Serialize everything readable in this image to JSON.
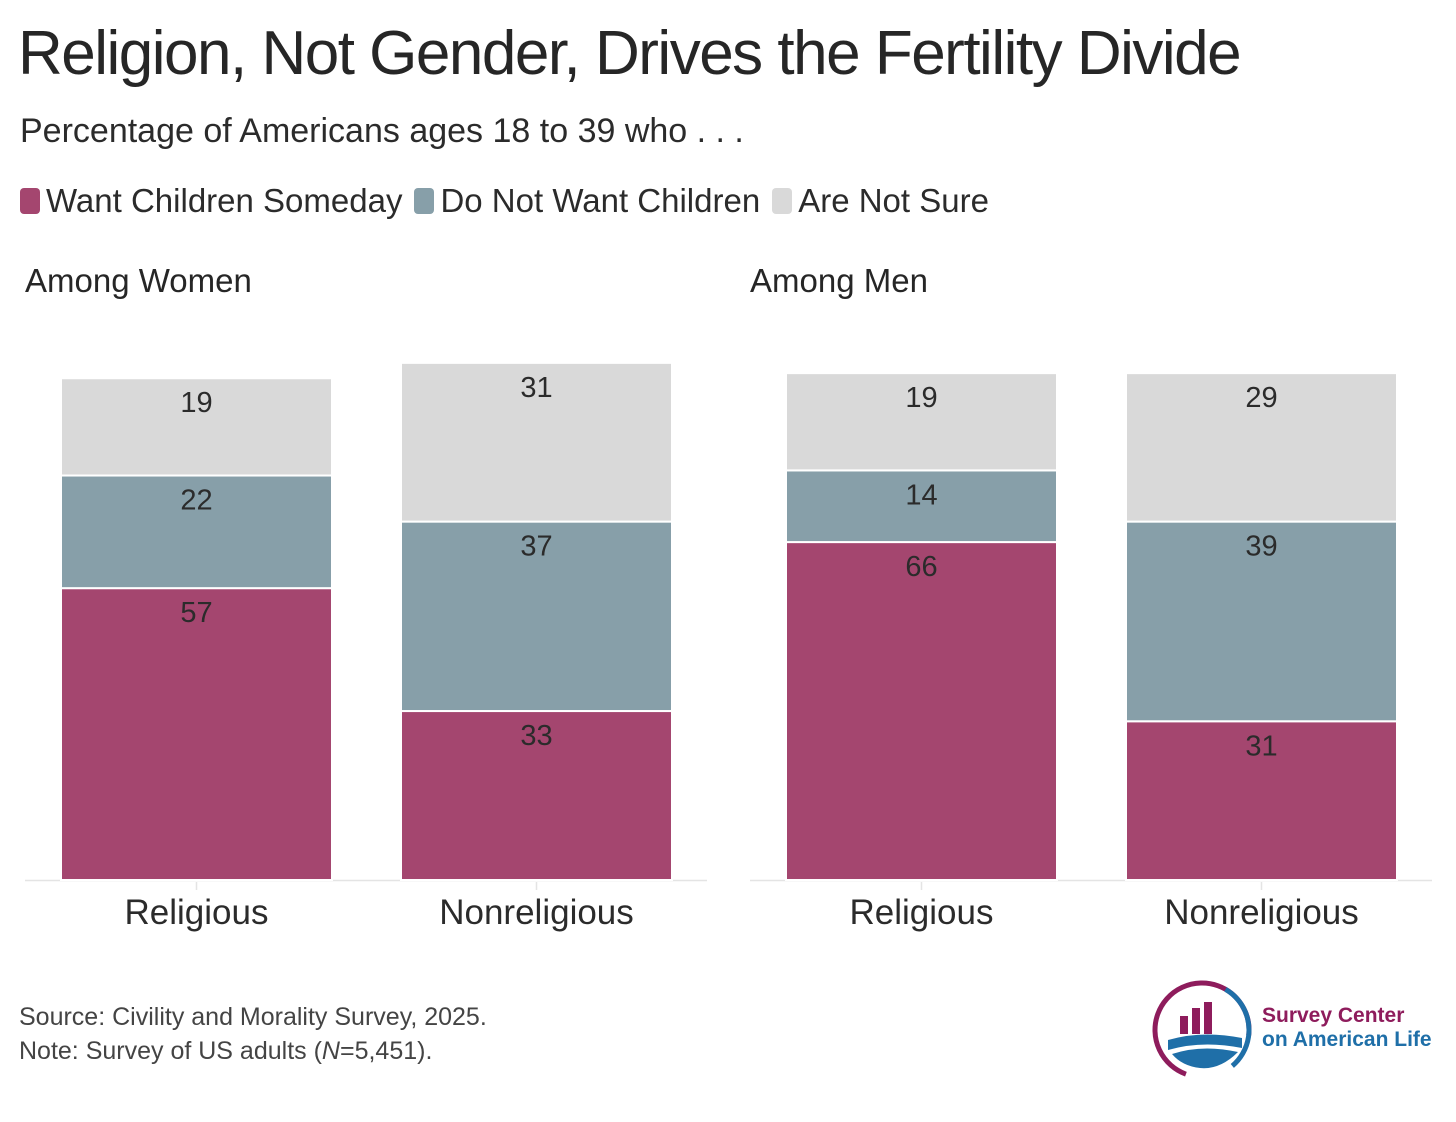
{
  "title": "Religion, Not Gender, Drives the Fertility Divide",
  "subtitle": "Percentage of Americans ages 18 to 39 who . . .",
  "legend": [
    {
      "label": "Want Children Someday",
      "color": "#a4466f"
    },
    {
      "label": "Do Not Want Children",
      "color": "#879fa9"
    },
    {
      "label": "Are Not Sure",
      "color": "#d9d9d9"
    }
  ],
  "chart_data": [
    {
      "type": "bar",
      "stacked": true,
      "title": "Among Women",
      "categories": [
        "Religious",
        "Nonreligious"
      ],
      "series": [
        {
          "name": "Want Children Someday",
          "values": [
            57,
            33
          ],
          "color": "#a4466f"
        },
        {
          "name": "Do Not Want Children",
          "values": [
            22,
            37
          ],
          "color": "#879fa9"
        },
        {
          "name": "Are Not Sure",
          "values": [
            19,
            31
          ],
          "color": "#d9d9d9"
        }
      ],
      "ylim": [
        0,
        100
      ]
    },
    {
      "type": "bar",
      "stacked": true,
      "title": "Among Men",
      "categories": [
        "Religious",
        "Nonreligious"
      ],
      "series": [
        {
          "name": "Want Children Someday",
          "values": [
            66,
            31
          ],
          "color": "#a4466f"
        },
        {
          "name": "Do Not Want Children",
          "values": [
            14,
            39
          ],
          "color": "#879fa9"
        },
        {
          "name": "Are Not Sure",
          "values": [
            19,
            29
          ],
          "color": "#d9d9d9"
        }
      ],
      "ylim": [
        0,
        100
      ]
    }
  ],
  "footer": {
    "source": "Source: Civility and Morality Survey, 2025.",
    "note_prefix": "Note: Survey of US adults (",
    "note_n": "N",
    "note_suffix": "=5,451)."
  },
  "logo": {
    "line1": "Survey Center",
    "line2": "on American Life",
    "color1": "#8e1c5c",
    "color2": "#1f6fa8"
  }
}
